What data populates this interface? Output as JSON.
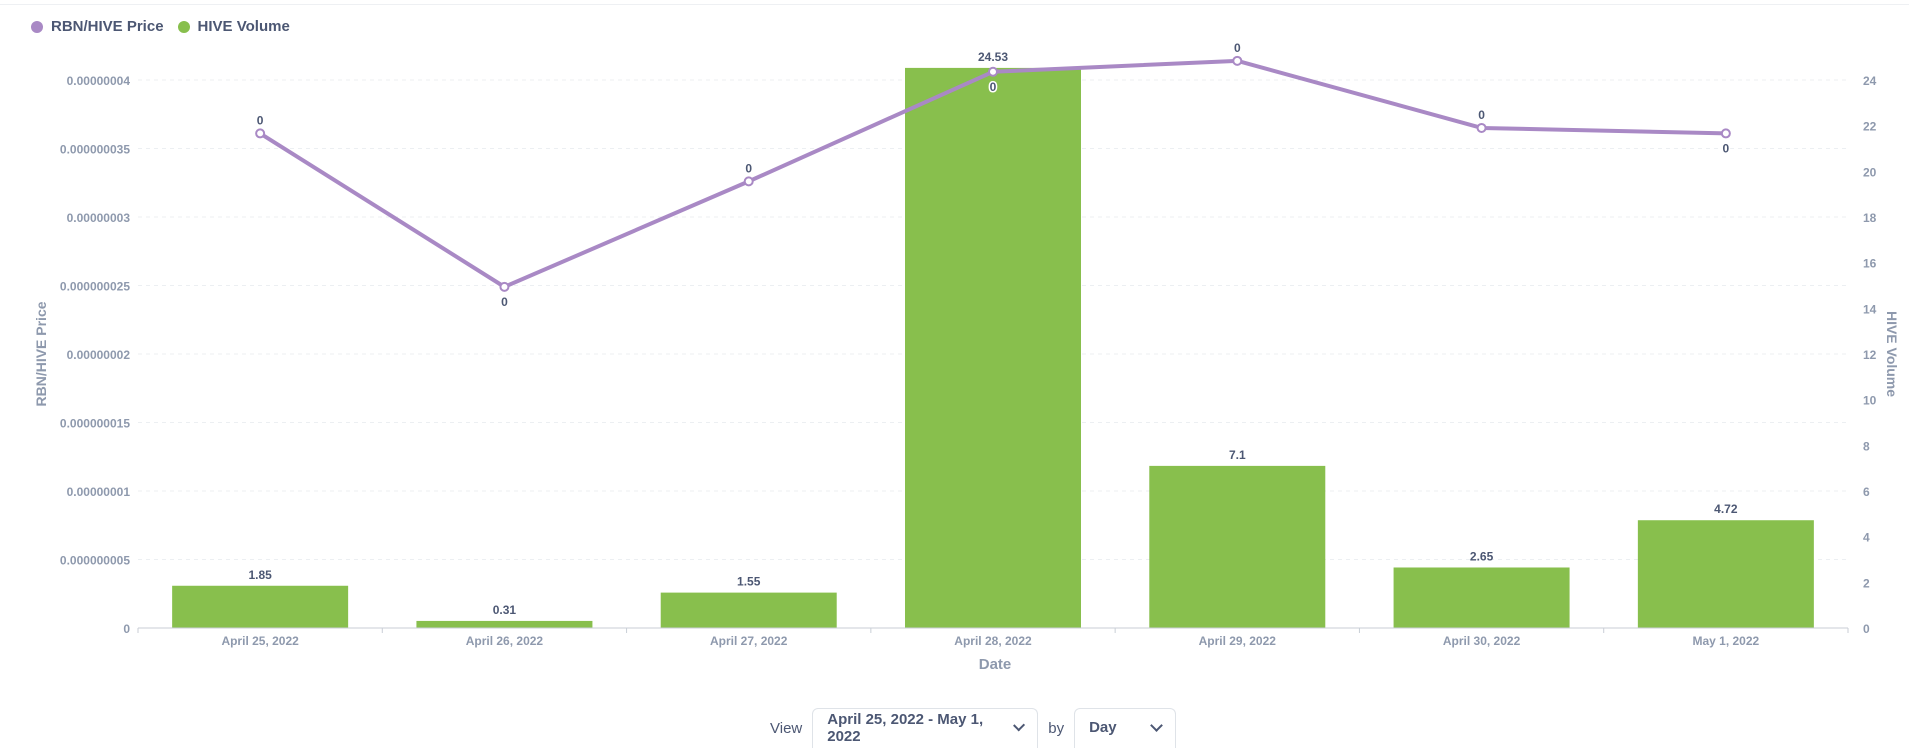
{
  "legend": {
    "items": [
      {
        "label": "RBN/HIVE Price",
        "color": "#a989c5"
      },
      {
        "label": "HIVE Volume",
        "color": "#88bf4d"
      }
    ]
  },
  "chart_data": {
    "type": "bar",
    "title": "",
    "xlabel": "Date",
    "categories": [
      "April 25, 2022",
      "April 26, 2022",
      "April 27, 2022",
      "April 28, 2022",
      "April 29, 2022",
      "April 30, 2022",
      "May 1, 2022"
    ],
    "series": [
      {
        "name": "HIVE Volume",
        "type": "bar",
        "axis": "right",
        "color": "#88bf4d",
        "values": [
          1.85,
          0.31,
          1.55,
          24.53,
          7.1,
          2.65,
          4.72
        ],
        "labels": [
          "1.85",
          "0.31",
          "1.55",
          "24.53",
          "7.1",
          "2.65",
          "4.72"
        ]
      },
      {
        "name": "RBN/HIVE Price",
        "type": "line",
        "axis": "left",
        "color": "#a989c5",
        "values": [
          3.61e-08,
          2.49e-08,
          3.26e-08,
          4.06e-08,
          4.14e-08,
          3.65e-08,
          3.61e-08
        ],
        "labels": [
          "0",
          "0",
          "0",
          "0",
          "0",
          "0",
          "0"
        ]
      }
    ],
    "y_left": {
      "label": "RBN/HIVE Price",
      "range": [
        0,
        4e-08
      ],
      "ticks": [
        "0",
        "0.000000005",
        "0.00000001",
        "0.000000015",
        "0.00000002",
        "0.000000025",
        "0.00000003",
        "0.000000035",
        "0.00000004"
      ]
    },
    "y_right": {
      "label": "HIVE Volume",
      "range": [
        0,
        24
      ],
      "ticks": [
        "0",
        "2",
        "4",
        "6",
        "8",
        "10",
        "12",
        "14",
        "16",
        "18",
        "20",
        "22",
        "24"
      ]
    },
    "grid": true,
    "legend_position": "top-left"
  },
  "controls": {
    "view_label": "View",
    "range_value": "April 25, 2022 - May 1, 2022",
    "by_label": "by",
    "grain_value": "Day"
  }
}
